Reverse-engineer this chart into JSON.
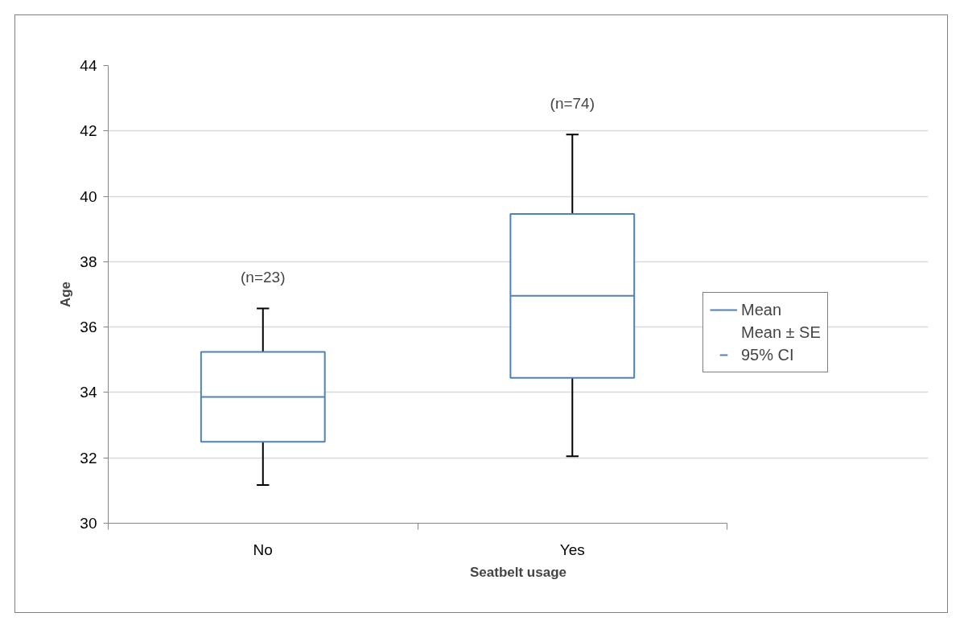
{
  "chart_data": {
    "type": "box",
    "xlabel": "Seatbelt usage",
    "ylabel": "Age",
    "categories": [
      "No",
      "Yes"
    ],
    "boxes": [
      {
        "low": 31.17,
        "q1": 32.49,
        "median": 33.86,
        "q3": 35.24,
        "high": 36.57
      },
      {
        "low": 32.05,
        "q1": 34.45,
        "median": 36.96,
        "q3": 39.46,
        "high": 41.89
      }
    ],
    "color": "#4f81bd",
    "ylim": [
      30,
      44
    ],
    "yticks": [
      30,
      32,
      34,
      36,
      38,
      40,
      42,
      44
    ],
    "grid": "y",
    "annotations": [
      "(n=23)",
      "(n=74)",
      "Mean",
      "Mean ± SE",
      "95% CI"
    ]
  }
}
